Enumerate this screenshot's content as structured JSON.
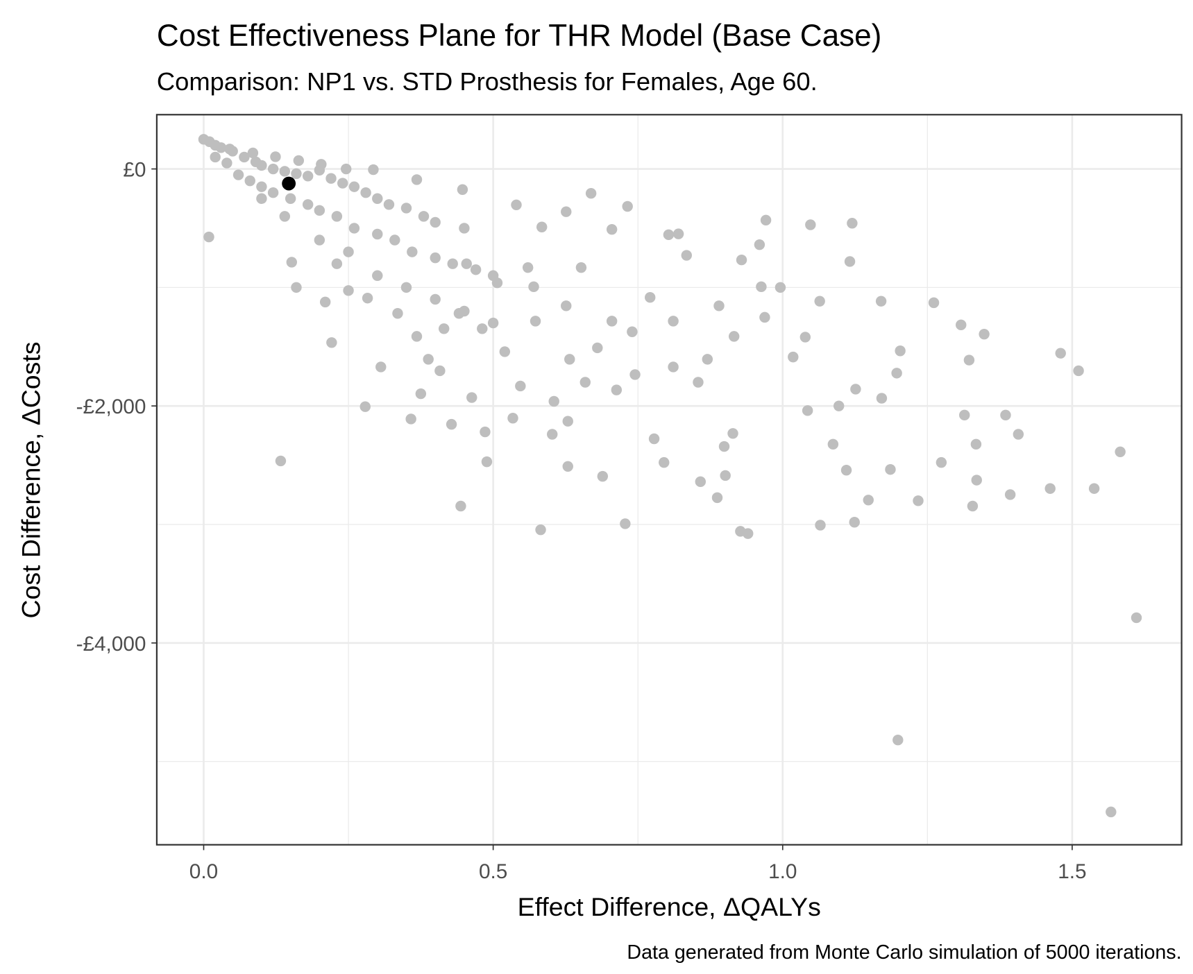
{
  "chart_data": {
    "type": "scatter",
    "title": "Cost Effectiveness Plane for THR Model (Base Case)",
    "subtitle": "Comparison: NP1 vs. STD Prosthesis for Females, Age 60.",
    "x_label": "Effect Difference,  ΔQALYs",
    "y_label": "Cost Difference,  ΔCosts",
    "caption": "Data generated from Monte Carlo simulation of 5000 iterations.",
    "xlim": [
      -0.081,
      1.689
    ],
    "ylim": [
      -5703,
      458
    ],
    "xticks": [
      {
        "value": 0,
        "label": "0.0"
      },
      0.5,
      {
        "value": 1,
        "label": "1.0"
      },
      1.5
    ],
    "yticks": [
      {
        "value": 0,
        "label": "£0"
      },
      {
        "value": -2000,
        "label": "-£2,000"
      },
      {
        "value": -4000,
        "label": "-£4,000"
      }
    ],
    "grid": true,
    "minor_grid": true,
    "series": [
      {
        "color": "#bebebe",
        "x": [
          0.0,
          0.01,
          0.02,
          0.03,
          0.05,
          0.07,
          0.09,
          0.1,
          0.12,
          0.14,
          0.16,
          0.18,
          0.2,
          0.22,
          0.24,
          0.26,
          0.28,
          0.3,
          0.32,
          0.35,
          0.38,
          0.4,
          0.45,
          0.02,
          0.04,
          0.06,
          0.08,
          0.1,
          0.12,
          0.15,
          0.18,
          0.2,
          0.23,
          0.26,
          0.3,
          0.33,
          0.36,
          0.4,
          0.43,
          0.47,
          0.5,
          0.1,
          0.14,
          0.2,
          0.25,
          0.3,
          0.35,
          0.4,
          0.45,
          0.5,
          0.009,
          0.133,
          0.221,
          0.16,
          0.279,
          0.306,
          0.358,
          0.375,
          0.428,
          0.444,
          0.489,
          0.486,
          0.534,
          0.582,
          0.602,
          0.629,
          0.629,
          0.689,
          0.728,
          0.732,
          0.669,
          0.778,
          0.795,
          0.858,
          0.887,
          0.901,
          0.927,
          0.94,
          0.971,
          1.048,
          1.12,
          1.116,
          1.065,
          1.124,
          1.11,
          1.148,
          1.186,
          1.234,
          1.274,
          1.328,
          1.335,
          1.334,
          1.314,
          1.385,
          1.407,
          1.393,
          1.462,
          1.538,
          1.583,
          1.48,
          1.511,
          1.611,
          1.199,
          1.567,
          1.261,
          1.308,
          1.348,
          1.322,
          1.17,
          1.064,
          1.203,
          1.197,
          1.171,
          1.126,
          1.087,
          1.097,
          1.043,
          1.039,
          1.018,
          0.996,
          0.963,
          0.96,
          0.929,
          0.899,
          0.914,
          0.854,
          0.803,
          0.82,
          0.834,
          0.771,
          0.74,
          0.713,
          0.68,
          0.632,
          0.584,
          0.57,
          0.52,
          0.481,
          0.441,
          0.415,
          0.388,
          0.335,
          0.283,
          0.25,
          0.23,
          0.21,
          0.152,
          0.368,
          0.408,
          0.463,
          0.547,
          0.605,
          0.659,
          0.745,
          0.811,
          0.87,
          0.916,
          0.969,
          0.89,
          0.811,
          0.705,
          0.626,
          0.573,
          0.507,
          0.454,
          0.56,
          0.652,
          0.705,
          0.626,
          0.54,
          0.447,
          0.368,
          0.293,
          0.246,
          0.045,
          0.085,
          0.124,
          0.164,
          0.203
        ],
        "y": [
          250,
          230,
          200,
          180,
          150,
          100,
          60,
          30,
          0,
          -20,
          -40,
          -60,
          -10,
          -80,
          -120,
          -150,
          -200,
          -250,
          -300,
          -330,
          -400,
          -450,
          -500,
          100,
          50,
          -50,
          -100,
          -150,
          -200,
          -250,
          -300,
          -350,
          -400,
          -500,
          -550,
          -600,
          -700,
          -750,
          -800,
          -850,
          -900,
          -250,
          -400,
          -600,
          -700,
          -900,
          -1000,
          -1100,
          -1200,
          -1300,
          -574,
          -2464,
          -1465,
          -1000,
          -2006,
          -1671,
          -2110,
          -1897,
          -2155,
          -2845,
          -2471,
          -2219,
          -2103,
          -3045,
          -2239,
          -2129,
          -2510,
          -2594,
          -2994,
          -316,
          -206,
          -2277,
          -2477,
          -2639,
          -2774,
          -2587,
          -3058,
          -3077,
          -432,
          -471,
          -458,
          -781,
          -3006,
          -2981,
          -2542,
          -2794,
          -2536,
          -2800,
          -2477,
          -2845,
          -2626,
          -2323,
          -2077,
          -2077,
          -2239,
          -2748,
          -2697,
          -2697,
          -2387,
          -1555,
          -1703,
          -3787,
          -4819,
          -5426,
          -1129,
          -1316,
          -1394,
          -1613,
          -1116,
          -1116,
          -1535,
          -1723,
          -1935,
          -1858,
          -2323,
          -2000,
          -2039,
          -1419,
          -1587,
          -1000,
          -994,
          -639,
          -768,
          -2342,
          -2232,
          -1800,
          -555,
          -548,
          -729,
          -1084,
          -1374,
          -1865,
          -1510,
          -1606,
          -490,
          -994,
          -1542,
          -1348,
          -1219,
          -1348,
          -1606,
          -1219,
          -1090,
          -1026,
          -800,
          -1123,
          -787,
          -1413,
          -1703,
          -1929,
          -1832,
          -1961,
          -1800,
          -1735,
          -1671,
          -1606,
          -1413,
          -1252,
          -1155,
          -1284,
          -1284,
          -1155,
          -1284,
          -961,
          -800,
          -832,
          -832,
          -510,
          -361,
          -303,
          -174,
          -90,
          -6,
          0,
          168,
          135,
          103,
          71,
          39
        ]
      },
      {
        "color": "#000000",
        "x": [
          0.147
        ],
        "y": [
          -123
        ]
      }
    ]
  }
}
